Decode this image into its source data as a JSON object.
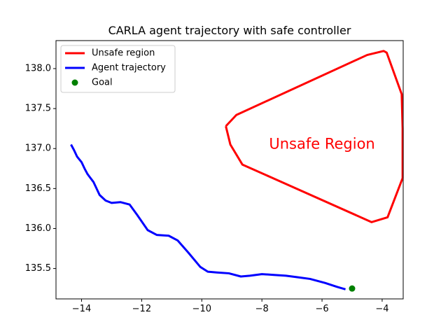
{
  "chart_data": {
    "type": "line",
    "title": "CARLA agent trajectory with safe controller",
    "xlabel": "",
    "ylabel": "",
    "xlim": [
      -14.85,
      -3.3
    ],
    "ylim": [
      135.12,
      138.35
    ],
    "xticks": [
      -14,
      -12,
      -10,
      -8,
      -6,
      -4
    ],
    "xtick_labels": [
      "−14",
      "−12",
      "−10",
      "−8",
      "−6",
      "−4"
    ],
    "yticks": [
      135.5,
      136.0,
      136.5,
      137.0,
      137.5,
      138.0
    ],
    "ytick_labels": [
      "135.5",
      "136.0",
      "136.5",
      "137.0",
      "137.5",
      "138.0"
    ],
    "grid": false,
    "legend_position": "top-left",
    "series": [
      {
        "name": "Unsafe region",
        "kind": "line",
        "color": "#ff0000",
        "points": [
          [
            -9.2,
            137.28
          ],
          [
            -8.85,
            137.42
          ],
          [
            -4.5,
            138.17
          ],
          [
            -3.95,
            138.22
          ],
          [
            -3.85,
            138.2
          ],
          [
            -3.35,
            137.68
          ],
          [
            -3.32,
            137.25
          ],
          [
            -3.32,
            136.85
          ],
          [
            -3.32,
            136.63
          ],
          [
            -3.82,
            136.14
          ],
          [
            -4.35,
            136.08
          ],
          [
            -8.65,
            136.8
          ],
          [
            -9.05,
            137.05
          ],
          [
            -9.2,
            137.28
          ]
        ]
      },
      {
        "name": "Agent trajectory",
        "kind": "line",
        "color": "#0000ff",
        "points": [
          [
            -14.35,
            137.05
          ],
          [
            -14.25,
            136.98
          ],
          [
            -14.15,
            136.9
          ],
          [
            -14.0,
            136.83
          ],
          [
            -13.9,
            136.75
          ],
          [
            -13.8,
            136.68
          ],
          [
            -13.6,
            136.58
          ],
          [
            -13.4,
            136.42
          ],
          [
            -13.2,
            136.35
          ],
          [
            -13.0,
            136.32
          ],
          [
            -12.7,
            136.33
          ],
          [
            -12.4,
            136.3
          ],
          [
            -12.15,
            136.17
          ],
          [
            -11.8,
            135.98
          ],
          [
            -11.5,
            135.92
          ],
          [
            -11.1,
            135.91
          ],
          [
            -10.8,
            135.85
          ],
          [
            -10.45,
            135.7
          ],
          [
            -10.05,
            135.52
          ],
          [
            -9.8,
            135.46
          ],
          [
            -9.5,
            135.45
          ],
          [
            -9.1,
            135.44
          ],
          [
            -8.7,
            135.4
          ],
          [
            -8.4,
            135.41
          ],
          [
            -8.0,
            135.43
          ],
          [
            -7.6,
            135.42
          ],
          [
            -7.2,
            135.41
          ],
          [
            -6.8,
            135.39
          ],
          [
            -6.4,
            135.37
          ],
          [
            -5.9,
            135.32
          ],
          [
            -5.5,
            135.27
          ],
          [
            -5.22,
            135.24
          ]
        ]
      },
      {
        "name": "Goal",
        "kind": "scatter",
        "color": "#008000",
        "points": [
          [
            -5.0,
            135.25
          ]
        ]
      }
    ],
    "annotations": [
      {
        "text": "Unsafe Region",
        "x": -6.0,
        "y": 137.05,
        "color": "#ff0000"
      }
    ]
  }
}
